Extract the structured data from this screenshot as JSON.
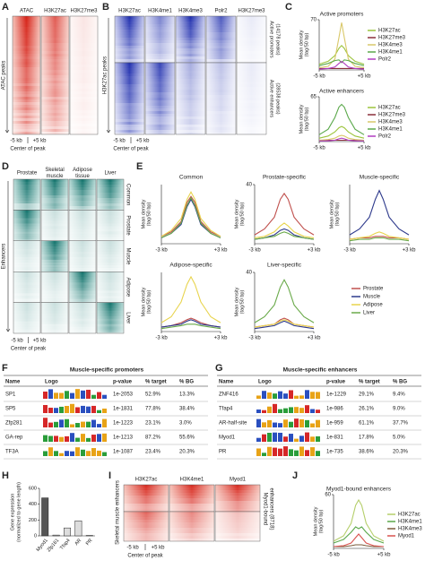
{
  "panels": {
    "A": {
      "letter": "A",
      "columns": [
        "ATAC",
        "H3K27ac",
        "H3K27me3"
      ],
      "ylabel": "ATAC peaks",
      "ticks": [
        "-5 kb",
        "+5 kb"
      ],
      "xlabel": "Center of peak"
    },
    "B": {
      "letter": "B",
      "columns": [
        "H3K27ac",
        "H3K4me1",
        "H3K4me3",
        "Polr2",
        "H3K27me3"
      ],
      "ylabel": "H3K27ac peaks",
      "groups": [
        [
          "Active promoters",
          "(14178 peaks)"
        ],
        [
          "Active enhancers",
          "(28538 peaks)"
        ]
      ],
      "ticks": [
        "-5 kb",
        "+5 kb"
      ],
      "xlabel": "Center of peak"
    },
    "C": {
      "letter": "C"
    },
    "D": {
      "letter": "D",
      "columns": [
        [
          "Prostate"
        ],
        [
          "Skeletal",
          "muscle"
        ],
        [
          "Adipose",
          "tissue"
        ],
        [
          "Liver"
        ]
      ],
      "rows": [
        "Common",
        "Prostate",
        "Muscle",
        "Adipose",
        "Liver"
      ],
      "ylabel": "Enhancers",
      "ticks": [
        "-5 kb",
        "+5 kb"
      ],
      "xlabel": "Center of peak"
    },
    "E": {
      "letter": "E"
    },
    "F": {
      "letter": "F",
      "title": "Muscle-specific promoters",
      "header": [
        "Name",
        "Logo",
        "p-value",
        "% target",
        "% BG"
      ],
      "rows": [
        [
          "SP1",
          "1e-2053",
          "52.9%",
          "13.3%"
        ],
        [
          "SP5",
          "1e-1831",
          "77.8%",
          "38.4%"
        ],
        [
          "Zfp281",
          "1e-1223",
          "23.1%",
          "3.0%"
        ],
        [
          "GA-rep",
          "1e-1213",
          "87.2%",
          "55.6%"
        ],
        [
          "TF3A",
          "1e-1087",
          "23.4%",
          "20.3%"
        ]
      ]
    },
    "G": {
      "letter": "G",
      "title": "Muscle-specific enhancers",
      "header": [
        "Name",
        "Logo",
        "p-value",
        "% target",
        "% BG"
      ],
      "rows": [
        [
          "ZNF416",
          "1e-1229",
          "29.1%",
          "9.4%"
        ],
        [
          "Tfap4",
          "1e-986",
          "26.1%",
          "9.0%"
        ],
        [
          "AR-half-site",
          "1e-959",
          "61.1%",
          "37.7%"
        ],
        [
          "Myod1",
          "1e-831",
          "17.8%",
          "5.0%"
        ],
        [
          "PR",
          "1e-735",
          "38.6%",
          "20.3%"
        ]
      ]
    },
    "H": {
      "letter": "H"
    },
    "I": {
      "letter": "I",
      "columns": [
        "H3K27ac",
        "H3K4me1",
        "Myod1"
      ],
      "ylabel": "Skeletal muscle enhancers",
      "right": [
        "Myod1-bound",
        "enhancers (8718)"
      ],
      "ticks": [
        "-5 kb",
        "+5 kb"
      ],
      "xlabel": "Center of peak"
    },
    "J": {
      "letter": "J"
    }
  },
  "chart_data": [
    {
      "type": "line",
      "title": "Active promoters",
      "ylabel": [
        "Mean density",
        "(tag/50 bp)"
      ],
      "x": [
        -5,
        -3,
        -1.5,
        -0.6,
        0,
        0.6,
        1.5,
        3,
        5
      ],
      "xlim": [
        -5,
        5
      ],
      "xticks": [
        {
          "value": -5,
          "label": "-5 kb"
        },
        {
          "value": 5,
          "label": "+5 kb"
        }
      ],
      "ylim": [
        0,
        70
      ],
      "yticks": [
        70
      ],
      "series": [
        {
          "name": "H3K27ac",
          "color": "#9cc43c",
          "values": [
            8,
            12,
            20,
            30,
            34,
            30,
            20,
            12,
            8
          ]
        },
        {
          "name": "H3K27me3",
          "color": "#8b2f3a",
          "values": [
            2,
            2,
            2,
            2,
            2,
            2,
            2,
            2,
            2
          ]
        },
        {
          "name": "H3K4me3",
          "color": "#d9c86a",
          "values": [
            3,
            5,
            15,
            45,
            66,
            45,
            15,
            5,
            3
          ]
        },
        {
          "name": "H3K4me1",
          "color": "#5aa84a",
          "values": [
            6,
            9,
            13,
            14,
            10,
            14,
            13,
            9,
            6
          ]
        },
        {
          "name": "Polr2",
          "color": "#b03cc0",
          "values": [
            1,
            2,
            4,
            9,
            12,
            9,
            4,
            2,
            1
          ]
        }
      ]
    },
    {
      "type": "line",
      "title": "Active enhancers",
      "ylabel": [
        "Mean density",
        "(tag/50 bp)"
      ],
      "x": [
        -5,
        -3,
        -1.5,
        -0.6,
        0,
        0.6,
        1.5,
        3,
        5
      ],
      "xlim": [
        -5,
        5
      ],
      "xticks": [
        {
          "value": -5,
          "label": "-5 kb"
        },
        {
          "value": 5,
          "label": "+5 kb"
        }
      ],
      "ylim": [
        0,
        65
      ],
      "yticks": [
        65
      ],
      "series": [
        {
          "name": "H3K27ac",
          "color": "#9cc43c",
          "values": [
            5,
            8,
            14,
            20,
            22,
            20,
            14,
            8,
            5
          ]
        },
        {
          "name": "H3K27me3",
          "color": "#8b2f3a",
          "values": [
            2,
            2,
            2,
            2,
            2,
            2,
            2,
            2,
            2
          ]
        },
        {
          "name": "H3K4me3",
          "color": "#d9c86a",
          "values": [
            2,
            3,
            5,
            8,
            9,
            8,
            5,
            3,
            2
          ]
        },
        {
          "name": "H3K4me1",
          "color": "#5aa84a",
          "values": [
            10,
            18,
            35,
            50,
            54,
            50,
            35,
            18,
            10
          ]
        },
        {
          "name": "Polr2",
          "color": "#b03cc0",
          "values": [
            1,
            1,
            2,
            4,
            5,
            4,
            2,
            1,
            1
          ]
        }
      ]
    },
    {
      "type": "line-multiples",
      "ylabel": [
        "Mean density",
        "(tag/50 bp)"
      ],
      "x": [
        -3,
        -2,
        -1,
        -0.4,
        0,
        0.4,
        1,
        2,
        3
      ],
      "xlim": [
        -3,
        3
      ],
      "xticks": [
        {
          "value": -3,
          "label": "-3 kb"
        },
        {
          "value": 3,
          "label": "+3 kb"
        }
      ],
      "series": [
        {
          "name": "Prostate",
          "color": "#c0504d"
        },
        {
          "name": "Muscle",
          "color": "#2e3a8c"
        },
        {
          "name": "Adipose",
          "color": "#e8d44d"
        },
        {
          "name": "Liver",
          "color": "#6aaa4a"
        }
      ],
      "subplots": [
        {
          "title": "Common",
          "ylim": [
            0,
            40
          ],
          "values": [
            [
              5,
              8,
              15,
              28,
              32,
              28,
              15,
              8,
              5
            ],
            [
              4,
              7,
              13,
              25,
              30,
              25,
              13,
              7,
              4
            ],
            [
              5,
              9,
              17,
              30,
              35,
              30,
              17,
              9,
              5
            ],
            [
              4,
              7,
              14,
              26,
              31,
              26,
              14,
              7,
              4
            ]
          ]
        },
        {
          "title": "Prostate-specific",
          "ylim": [
            0,
            40
          ],
          "yticks": [
            40
          ],
          "values": [
            [
              6,
              10,
              18,
              30,
              34,
              30,
              18,
              10,
              6
            ],
            [
              3,
              4,
              6,
              9,
              10,
              9,
              6,
              4,
              3
            ],
            [
              4,
              5,
              8,
              12,
              14,
              12,
              8,
              5,
              4
            ],
            [
              3,
              4,
              5,
              7,
              8,
              7,
              5,
              4,
              3
            ]
          ]
        },
        {
          "title": "Muscle-specific",
          "ylim": [
            0,
            40
          ],
          "values": [
            [
              3,
              4,
              4,
              5,
              5,
              5,
              4,
              4,
              3
            ],
            [
              6,
              10,
              18,
              30,
              36,
              30,
              18,
              10,
              6
            ],
            [
              3,
              4,
              5,
              7,
              8,
              7,
              5,
              4,
              3
            ],
            [
              2,
              3,
              3,
              4,
              4,
              4,
              3,
              3,
              2
            ]
          ]
        },
        {
          "title": "Adipose-specific",
          "ylim": [
            0,
            40
          ],
          "values": [
            [
              3,
              4,
              6,
              8,
              9,
              8,
              6,
              4,
              3
            ],
            [
              3,
              4,
              5,
              7,
              8,
              7,
              5,
              4,
              3
            ],
            [
              6,
              10,
              20,
              32,
              37,
              32,
              20,
              10,
              6
            ],
            [
              2,
              3,
              4,
              5,
              5,
              5,
              4,
              3,
              2
            ]
          ]
        },
        {
          "title": "Liver-specific",
          "ylim": [
            0,
            40
          ],
          "yticks": [
            40
          ],
          "values": [
            [
              3,
              4,
              5,
              8,
              9,
              8,
              5,
              4,
              3
            ],
            [
              2,
              3,
              4,
              6,
              7,
              6,
              4,
              3,
              2
            ],
            [
              3,
              4,
              5,
              7,
              8,
              7,
              5,
              4,
              3
            ],
            [
              6,
              10,
              18,
              30,
              35,
              30,
              18,
              10,
              6
            ]
          ]
        }
      ]
    },
    {
      "type": "bar",
      "ylabel": [
        "Gene expression",
        "(normalized to gene length)"
      ],
      "categories": [
        "Myod1",
        "Zfp161",
        "Tfap4",
        "AR",
        "PR"
      ],
      "values": [
        480,
        10,
        100,
        190,
        5
      ],
      "colors": [
        "#555555",
        "#dddddd",
        "#dddddd",
        "#dddddd",
        "#dddddd"
      ],
      "ylim": [
        0,
        600
      ],
      "yticks": [
        0,
        200,
        400,
        600
      ]
    },
    {
      "type": "line",
      "title": "Myod1-bound enhancers",
      "ylabel": [
        "Mean density",
        "(tag/50 bp)"
      ],
      "x": [
        -5,
        -3,
        -1.5,
        -0.6,
        0,
        0.6,
        1.5,
        3,
        5
      ],
      "xlim": [
        -5,
        5
      ],
      "xticks": [
        {
          "value": -5,
          "label": "-5 kb"
        },
        {
          "value": 5,
          "label": "+5 kb"
        }
      ],
      "ylim": [
        0,
        60
      ],
      "yticks": [
        60
      ],
      "series": [
        {
          "name": "H3K27ac",
          "color": "#b5cf6b",
          "values": [
            8,
            14,
            28,
            48,
            54,
            48,
            28,
            14,
            8
          ]
        },
        {
          "name": "H3K4me1",
          "color": "#5aa84a",
          "values": [
            6,
            10,
            18,
            24,
            22,
            24,
            18,
            10,
            6
          ]
        },
        {
          "name": "H3K4me3",
          "color": "#7a5a3a",
          "values": [
            2,
            2,
            3,
            4,
            4,
            4,
            3,
            2,
            2
          ]
        },
        {
          "name": "Myod1",
          "color": "#d9534f",
          "values": [
            2,
            3,
            6,
            12,
            16,
            12,
            6,
            3,
            2
          ]
        }
      ]
    }
  ]
}
